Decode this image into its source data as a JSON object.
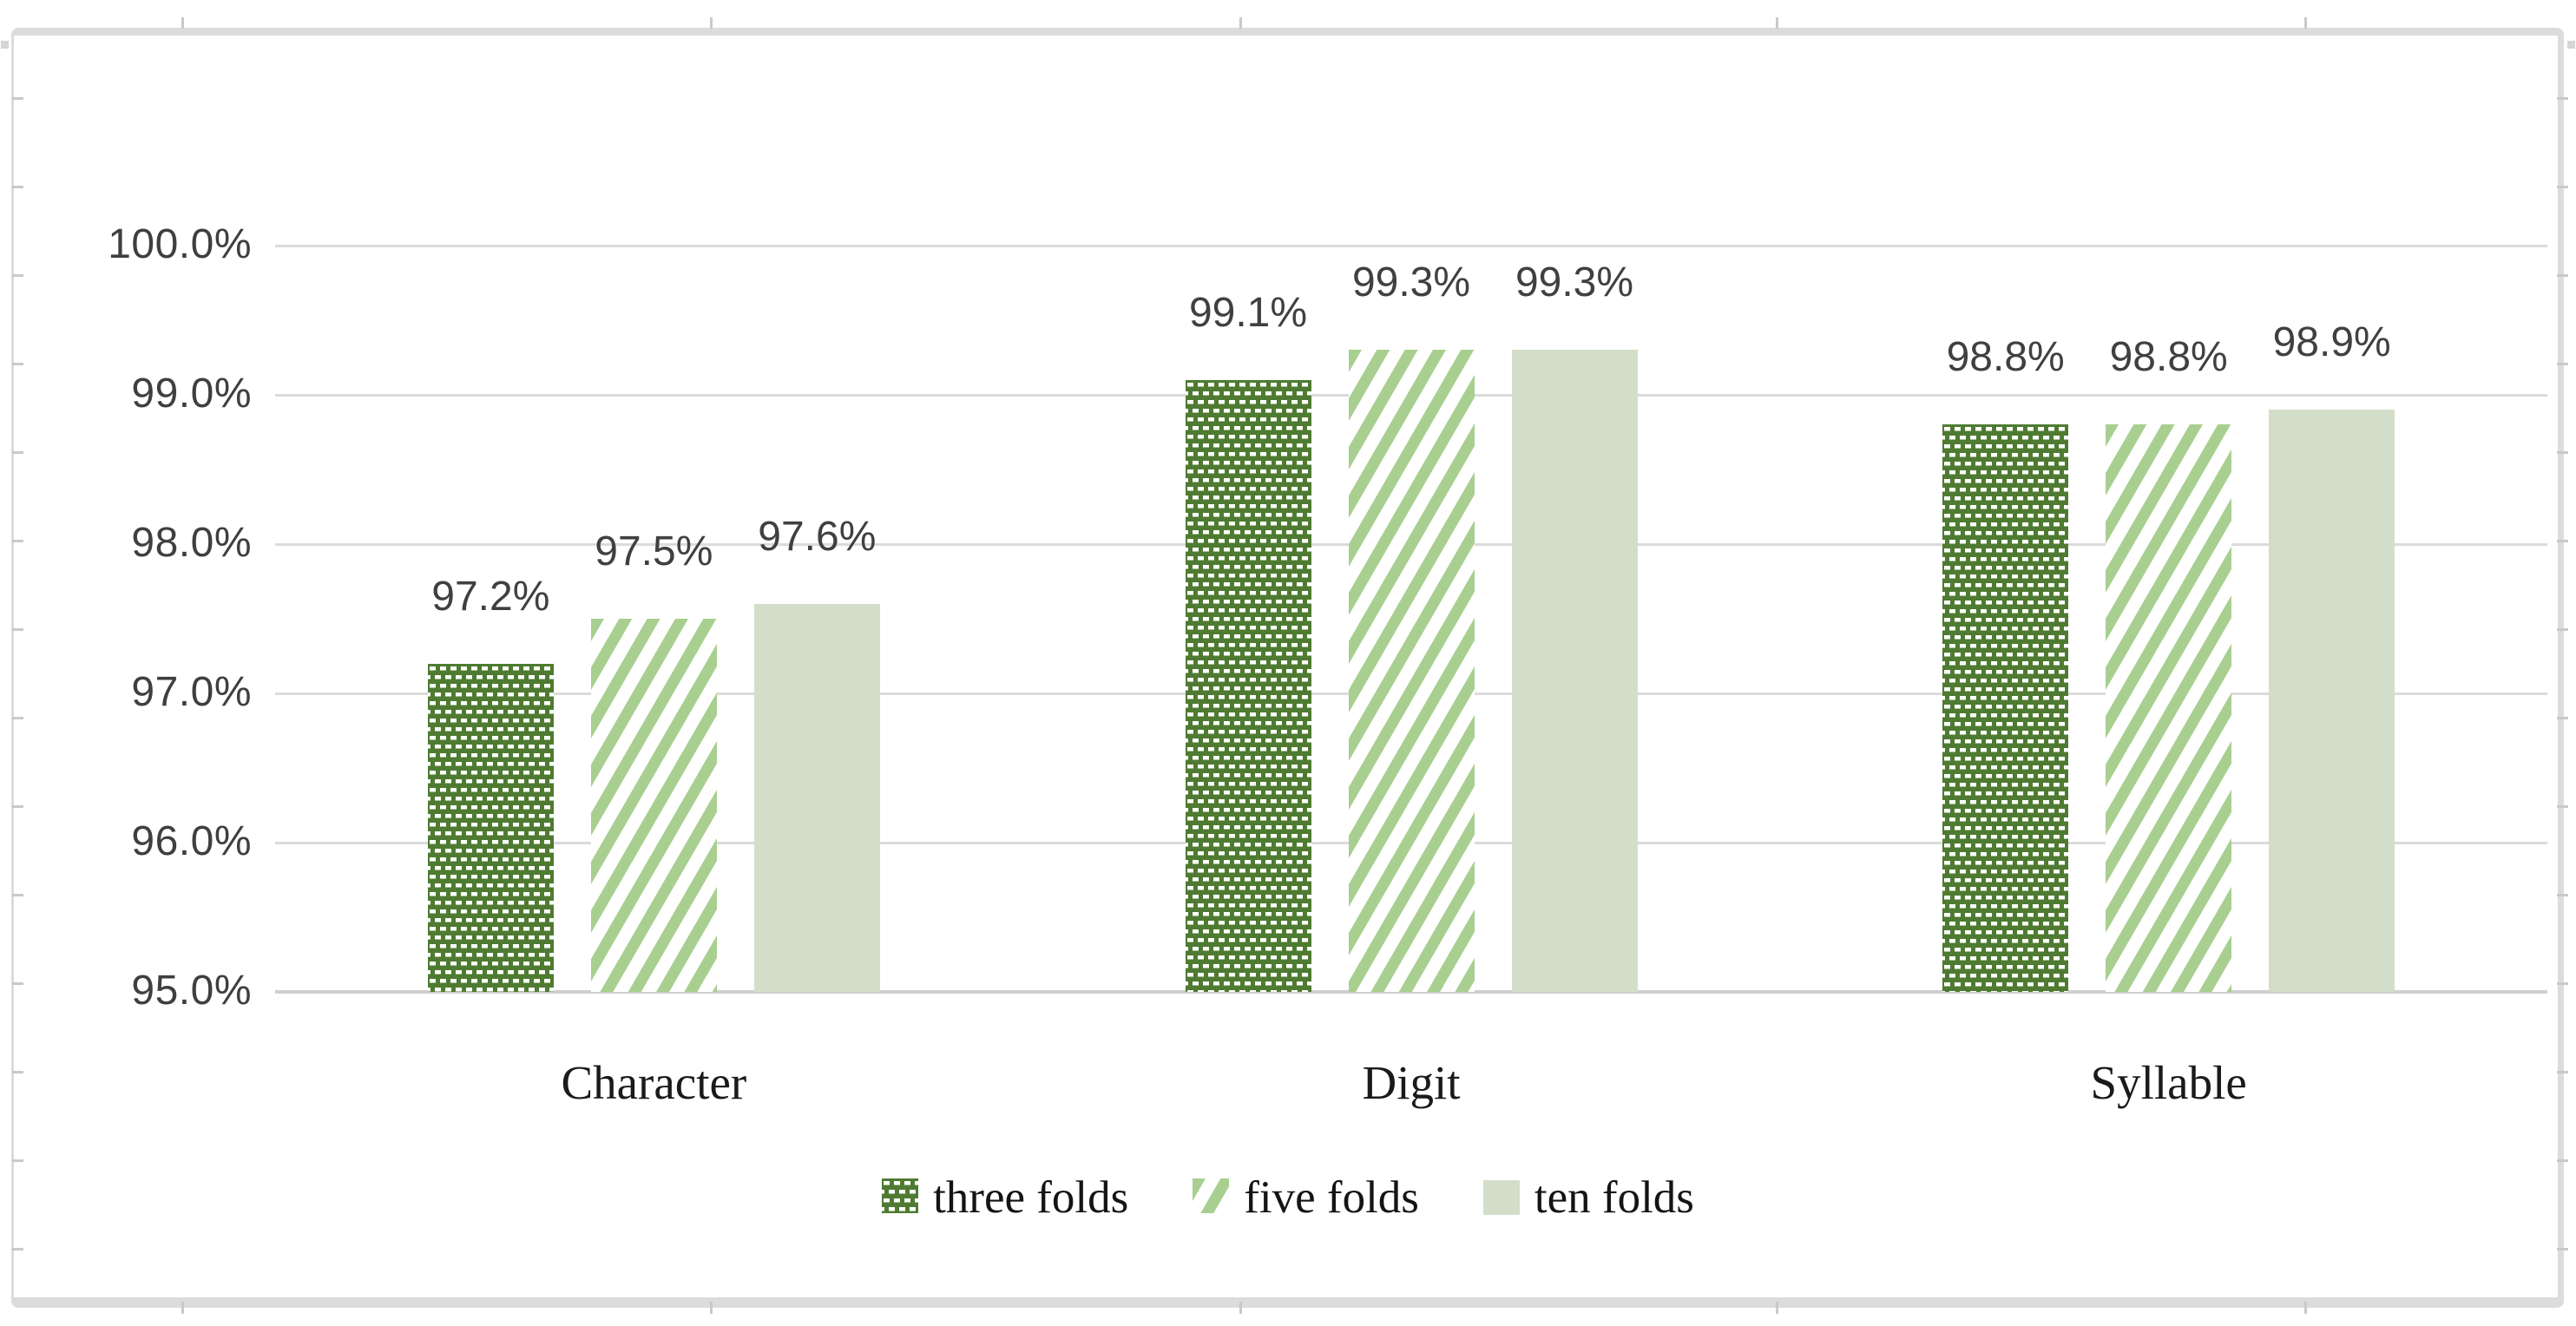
{
  "chart_data": {
    "type": "bar",
    "title": "",
    "xlabel": "",
    "ylabel": "",
    "categories": [
      "Character",
      "Digit",
      "Syllable"
    ],
    "series": [
      {
        "name": "three folds",
        "pattern": "dotted-grid",
        "color": "#4E7B31",
        "values": [
          97.2,
          99.1,
          98.8
        ],
        "labels": [
          "97.2%",
          "99.1%",
          "98.8%"
        ]
      },
      {
        "name": "five folds",
        "pattern": "diagonal-stripes",
        "color": "#A8CF90",
        "values": [
          97.5,
          99.3,
          98.8
        ],
        "labels": [
          "97.5%",
          "99.3%",
          "98.8%"
        ]
      },
      {
        "name": "ten folds",
        "pattern": "solid",
        "color": "#D2DEC9",
        "values": [
          97.6,
          99.3,
          98.9
        ],
        "labels": [
          "97.6%",
          "99.3%",
          "98.9%"
        ]
      }
    ],
    "yticks": [
      "100.0%",
      "99.0%",
      "98.0%",
      "97.0%",
      "96.0%",
      "95.0%"
    ],
    "ytick_values": [
      100,
      99,
      98,
      97,
      96,
      95
    ],
    "ylim": [
      95,
      100.5
    ],
    "grid": true,
    "legend_position": "bottom",
    "colors": {
      "background": "#FFFFFF",
      "pattern_dash": "#FFFFFF",
      "stripe_background": "#FFFFFF",
      "data_label_text": "#404040",
      "axis_text": "#3F3F3F",
      "category_text": "#1A1A1A",
      "legend_text": "#141414",
      "gridline": "#DBDBDB",
      "axis_line": "#CFCFCF",
      "frame_border": "#DCDCDC",
      "edge_tick": "#C9C9C9"
    }
  }
}
